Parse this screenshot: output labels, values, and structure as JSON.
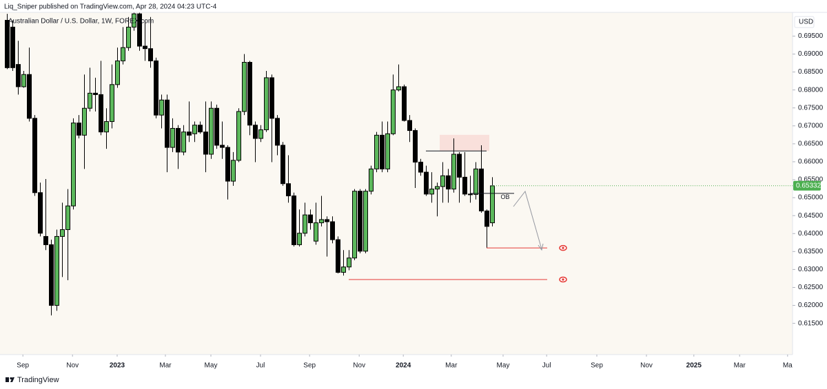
{
  "header": {
    "published": "Liq_Sniper published on TradingView.com, Apr 28, 2024 04:23 UTC-4"
  },
  "footer": {
    "brand": "TradingView"
  },
  "chart_data": {
    "type": "candlestick",
    "title": "Australian Dollar / U.S. Dollar, 1W, FOREX.com",
    "currency": "USD",
    "ylim": [
      0.6063,
      0.7016
    ],
    "yticks": [
      {
        "value": 0.615,
        "label": "0.61500"
      },
      {
        "value": 0.62,
        "label": "0.62000"
      },
      {
        "value": 0.625,
        "label": "0.62500"
      },
      {
        "value": 0.63,
        "label": "0.63000"
      },
      {
        "value": 0.635,
        "label": "0.63500"
      },
      {
        "value": 0.64,
        "label": "0.64000"
      },
      {
        "value": 0.645,
        "label": "0.64500"
      },
      {
        "value": 0.65,
        "label": "0.65000"
      },
      {
        "value": 0.655,
        "label": "0.65500"
      },
      {
        "value": 0.66,
        "label": "0.66000"
      },
      {
        "value": 0.665,
        "label": "0.66500"
      },
      {
        "value": 0.67,
        "label": "0.67000"
      },
      {
        "value": 0.675,
        "label": "0.67500"
      },
      {
        "value": 0.68,
        "label": "0.68000"
      },
      {
        "value": 0.685,
        "label": "0.68500"
      },
      {
        "value": 0.69,
        "label": "0.69000"
      },
      {
        "value": 0.695,
        "label": "0.69500"
      }
    ],
    "xlim": [
      -0.25,
      142.5
    ],
    "xticks": [
      {
        "value": 2.9,
        "label": "Sep"
      },
      {
        "value": 11.9,
        "label": "Nov"
      },
      {
        "value": 20,
        "label": "2023"
      },
      {
        "value": 28.75,
        "label": "Mar"
      },
      {
        "value": 37,
        "label": "May"
      },
      {
        "value": 46,
        "label": "Jul"
      },
      {
        "value": 54.9,
        "label": "Sep"
      },
      {
        "value": 63.9,
        "label": "Nov"
      },
      {
        "value": 71.9,
        "label": "2024"
      },
      {
        "value": 80.6,
        "label": "Mar"
      },
      {
        "value": 90,
        "label": "May"
      },
      {
        "value": 97.9,
        "label": "Jul"
      },
      {
        "value": 107,
        "label": "Sep"
      },
      {
        "value": 116,
        "label": "Nov"
      },
      {
        "value": 124.6,
        "label": "2025"
      },
      {
        "value": 132.9,
        "label": "Mar"
      },
      {
        "value": 141.6,
        "label": "Ma"
      }
    ],
    "up_color": "#5cb85c",
    "down_color": "#000000",
    "open": [
      0.6994,
      0.6975,
      0.6871,
      0.6809,
      0.6843,
      0.6721,
      0.6514,
      0.6392,
      0.6369,
      0.62,
      0.6392,
      0.6411,
      0.6477,
      0.6708,
      0.6674,
      0.6749,
      0.6791,
      0.6787,
      0.6683,
      0.6712,
      0.6815,
      0.6881,
      0.6918,
      0.6975,
      0.7012,
      0.6922,
      0.6915,
      0.6881,
      0.673,
      0.6772,
      0.664,
      0.6693,
      0.6627,
      0.6683,
      0.6678,
      0.6702,
      0.6683,
      0.6621,
      0.6749,
      0.6646,
      0.664,
      0.6546,
      0.6604,
      0.674,
      0.6877,
      0.6702,
      0.6665,
      0.6689,
      0.6834,
      0.6721,
      0.6646,
      0.6539,
      0.6505,
      0.6369,
      0.6401,
      0.6452,
      0.6379,
      0.643,
      0.6439,
      0.6433,
      0.6383,
      0.6292,
      0.6307,
      0.6332,
      0.6518,
      0.6351,
      0.6518,
      0.658,
      0.6674,
      0.658,
      0.6678,
      0.68,
      0.6809,
      0.6715,
      0.6687,
      0.6599,
      0.6571,
      0.651,
      0.6524,
      0.6531,
      0.6561,
      0.6524,
      0.6621,
      0.6557,
      0.651,
      0.6509,
      0.658,
      0.6463,
      0.643
    ],
    "high": [
      0.7012,
      0.6994,
      0.6937,
      0.6853,
      0.6918,
      0.673,
      0.6542,
      0.6552,
      0.6383,
      0.6411,
      0.6486,
      0.6524,
      0.6721,
      0.673,
      0.6843,
      0.6862,
      0.6834,
      0.6881,
      0.6749,
      0.6871,
      0.6918,
      0.6975,
      0.7003,
      0.7022,
      0.7016,
      0.6994,
      0.7003,
      0.689,
      0.6787,
      0.6787,
      0.6721,
      0.6702,
      0.6702,
      0.6768,
      0.6712,
      0.6712,
      0.6768,
      0.6768,
      0.6759,
      0.6712,
      0.6646,
      0.6627,
      0.6749,
      0.69,
      0.6881,
      0.6712,
      0.6702,
      0.6853,
      0.6843,
      0.673,
      0.6655,
      0.6618,
      0.6514,
      0.6467,
      0.6486,
      0.6467,
      0.6486,
      0.6505,
      0.6448,
      0.6448,
      0.6392,
      0.6354,
      0.6354,
      0.6524,
      0.6524,
      0.6524,
      0.6589,
      0.6683,
      0.6712,
      0.6712,
      0.6843,
      0.6871,
      0.6815,
      0.673,
      0.6693,
      0.6608,
      0.6589,
      0.6571,
      0.6542,
      0.6599,
      0.658,
      0.6665,
      0.6627,
      0.6627,
      0.6561,
      0.6599,
      0.6646,
      0.6467,
      0.6557
    ],
    "low": [
      0.6858,
      0.6853,
      0.6787,
      0.6806,
      0.6712,
      0.6505,
      0.6392,
      0.6354,
      0.6172,
      0.6185,
      0.6279,
      0.627,
      0.6467,
      0.6665,
      0.658,
      0.674,
      0.674,
      0.6674,
      0.6636,
      0.6693,
      0.6806,
      0.6871,
      0.6909,
      0.6965,
      0.6909,
      0.6881,
      0.6862,
      0.6721,
      0.6693,
      0.6571,
      0.6627,
      0.658,
      0.6618,
      0.6655,
      0.6655,
      0.6678,
      0.6571,
      0.6608,
      0.6636,
      0.6608,
      0.6495,
      0.6533,
      0.6599,
      0.673,
      0.6674,
      0.6599,
      0.6655,
      0.6683,
      0.6599,
      0.6618,
      0.6533,
      0.6486,
      0.6364,
      0.6364,
      0.6392,
      0.6411,
      0.6369,
      0.642,
      0.6336,
      0.6373,
      0.6289,
      0.6283,
      0.6298,
      0.6326,
      0.6345,
      0.6345,
      0.6509,
      0.6571,
      0.6571,
      0.6571,
      0.6674,
      0.6796,
      0.6712,
      0.6655,
      0.6527,
      0.6561,
      0.6505,
      0.6486,
      0.6448,
      0.6486,
      0.6486,
      0.6514,
      0.6486,
      0.6505,
      0.6486,
      0.6495,
      0.6458,
      0.636,
      0.642
    ],
    "close": [
      0.6862,
      0.6862,
      0.6809,
      0.6843,
      0.6721,
      0.6514,
      0.6401,
      0.6369,
      0.62,
      0.6392,
      0.6411,
      0.6477,
      0.6708,
      0.6674,
      0.6749,
      0.6791,
      0.6787,
      0.6683,
      0.6712,
      0.6815,
      0.6881,
      0.6918,
      0.6975,
      0.7012,
      0.6922,
      0.6915,
      0.6881,
      0.673,
      0.6772,
      0.664,
      0.6693,
      0.6627,
      0.6683,
      0.6674,
      0.6702,
      0.6683,
      0.6621,
      0.6749,
      0.6646,
      0.664,
      0.6546,
      0.6604,
      0.674,
      0.6877,
      0.6702,
      0.6665,
      0.6689,
      0.6834,
      0.6721,
      0.6646,
      0.6539,
      0.6505,
      0.6369,
      0.6401,
      0.6452,
      0.643,
      0.643,
      0.6439,
      0.6433,
      0.6383,
      0.6292,
      0.6307,
      0.6332,
      0.6518,
      0.6351,
      0.6518,
      0.658,
      0.6674,
      0.658,
      0.6678,
      0.68,
      0.6809,
      0.6715,
      0.6687,
      0.6599,
      0.6571,
      0.651,
      0.6524,
      0.6531,
      0.6561,
      0.6524,
      0.6621,
      0.6557,
      0.651,
      0.6509,
      0.658,
      0.6463,
      0.642,
      0.6533
    ],
    "last_price": {
      "value": 0.65332,
      "label": "0.65332",
      "color": "#4caf50"
    },
    "zone": {
      "low": 0.663,
      "high": 0.6675,
      "start": 79,
      "end": 88,
      "color": "#f9d9d4"
    },
    "levels": [
      {
        "value": 0.663,
        "start": 76,
        "end": 87,
        "color": "#131722"
      },
      {
        "value": 0.6512,
        "start": 84,
        "end": 92,
        "color": "#131722",
        "label": "OB"
      },
      {
        "value": 0.636,
        "start": 87,
        "end": 98,
        "color": "#e53935"
      },
      {
        "value": 0.6272,
        "start": 62,
        "end": 98,
        "color": "#e53935"
      }
    ]
  }
}
